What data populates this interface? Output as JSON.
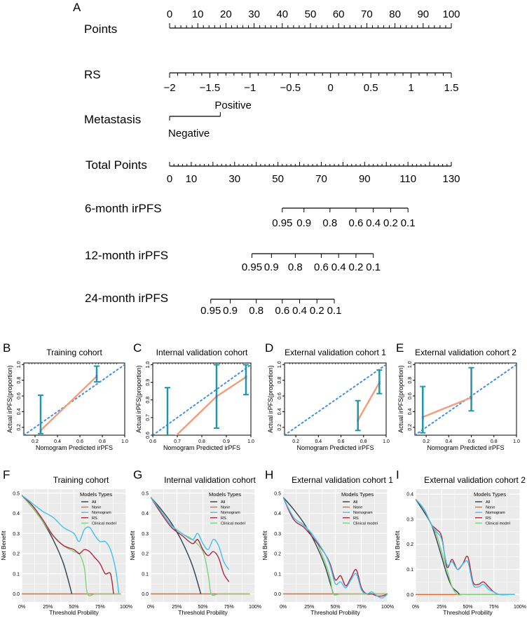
{
  "panel_letters": [
    "A",
    "B",
    "C",
    "D",
    "E",
    "F",
    "G",
    "H",
    "I"
  ],
  "colors": {
    "calib_error": "#2196a8",
    "calib_line": "#f0a07c",
    "calib_ideal": "#3d8ee8",
    "calib_point": "#4a5bd8",
    "dca_all": "#2f3d4a",
    "dca_none": "#e4692b",
    "dca_nomogram": "#3fc1e8",
    "dca_rs": "#b0243e",
    "dca_clinical": "#7fd07a",
    "grid_bg": "#ebebeb",
    "grid_line": "#ffffff"
  },
  "chart_data": [
    {
      "type": "nomogram",
      "panel": "A",
      "axes": [
        {
          "label": "Points",
          "tick_labels": [
            "0",
            "10",
            "20",
            "30",
            "40",
            "50",
            "60",
            "70",
            "80",
            "90",
            "100"
          ],
          "tick_values": [
            0,
            10,
            20,
            30,
            40,
            50,
            60,
            70,
            80,
            90,
            100
          ],
          "scale": [
            0,
            100
          ]
        },
        {
          "label": "RS",
          "tick_labels": [
            "−2",
            "−1.5",
            "−1",
            "−0.5",
            "0",
            "0.5",
            "1",
            "1.5"
          ],
          "tick_values": [
            -2,
            -1.5,
            -1,
            -0.5,
            0,
            0.5,
            1,
            1.5
          ],
          "points_map": [
            0,
            100
          ]
        },
        {
          "label": "Metastasis",
          "tick_labels": [
            "Positive",
            "Negative"
          ],
          "points": [
            18,
            0
          ]
        },
        {
          "label": "Total Points",
          "tick_labels": [
            "0",
            "10",
            "30",
            "50",
            "70",
            "90",
            "110",
            "130"
          ],
          "tick_values": [
            0,
            10,
            30,
            50,
            70,
            90,
            110,
            130
          ],
          "scale": [
            0,
            130
          ]
        },
        {
          "label": "6-month irPFS",
          "tick_labels": [
            "0.95",
            "0.9",
            "0.8",
            "0.6",
            "0.4",
            "0.2",
            "0.1"
          ],
          "total_points": [
            52,
            62,
            74,
            86,
            94,
            102,
            110
          ]
        },
        {
          "label": "12-month irPFS",
          "tick_labels": [
            "0.95",
            "0.9",
            "0.8",
            "0.6",
            "0.4",
            "0.2",
            "0.1"
          ],
          "total_points": [
            38,
            47,
            58,
            70,
            78,
            86,
            94
          ]
        },
        {
          "label": "24-month irPFS",
          "tick_labels": [
            "0.95",
            "0.9",
            "0.8",
            "0.6",
            "0.4",
            "0.2",
            "0.1"
          ],
          "total_points": [
            19,
            28,
            40,
            52,
            60,
            68,
            76
          ]
        }
      ]
    },
    {
      "type": "calibration",
      "panel": "B",
      "title": "Training cohort",
      "xlabel": "Nomogram Predicted irPFS",
      "ylabel": "Actual irPFS(proportion)",
      "xlim": [
        0.1,
        1.0
      ],
      "ylim": [
        0.1,
        1.02
      ],
      "xticks": [
        0.2,
        0.4,
        0.6,
        0.8,
        1.0
      ],
      "xtick_labels": [
        "0.2",
        "0.4",
        "0.6",
        "0.8",
        "1.0"
      ],
      "yticks": [
        0.2,
        0.4,
        0.6,
        0.8,
        1.0
      ],
      "ytick_labels": [
        "0.2",
        "0.4",
        "0.6",
        "0.8",
        "1.0"
      ],
      "points": [
        {
          "x": 0.25,
          "y": 0.16,
          "lo": 0.12,
          "hi": 0.61
        },
        {
          "x": 0.75,
          "y": 0.85,
          "lo": 0.78,
          "hi": 0.98
        }
      ]
    },
    {
      "type": "calibration",
      "panel": "C",
      "title": "Internal validation cohort",
      "xlabel": "Nomogram Predicted irPFS",
      "ylabel": "Actual irPFS(proportion)",
      "xlim": [
        0.6,
        1.0
      ],
      "ylim": [
        0.6,
        1.01
      ],
      "xticks": [
        0.6,
        0.7,
        0.8,
        0.9,
        1.0
      ],
      "xtick_labels": [
        "0.6",
        "0.7",
        "0.8",
        "0.9",
        "1.0"
      ],
      "yticks": [
        0.6,
        0.7,
        0.8,
        0.9,
        1.0
      ],
      "ytick_labels": [
        "0.6",
        "0.7",
        "0.8",
        "0.9",
        "1.0"
      ],
      "points": [
        {
          "x": 0.66,
          "y": 0.55,
          "lo": 0.55,
          "hi": 0.87
        },
        {
          "x": 0.86,
          "y": 0.82,
          "lo": 0.64,
          "hi": 1.0
        },
        {
          "x": 0.98,
          "y": 0.93,
          "lo": 0.83,
          "hi": 1.0
        }
      ]
    },
    {
      "type": "calibration",
      "panel": "D",
      "title": "External validation cohort 1",
      "xlabel": "Nomogram Predicted irPFS",
      "ylabel": "Actual irPFS(proportion)",
      "xlim": [
        0.1,
        1.0
      ],
      "ylim": [
        0.1,
        1.02
      ],
      "xticks": [
        0.2,
        0.4,
        0.6,
        0.8,
        1.0
      ],
      "xtick_labels": [
        "0.2",
        "0.4",
        "0.6",
        "0.8",
        "1.0"
      ],
      "yticks": [
        0.2,
        0.4,
        0.6,
        0.8,
        1.0
      ],
      "ytick_labels": [
        "0.2",
        "0.4",
        "0.6",
        "0.8",
        "1.0"
      ],
      "points": [
        {
          "x": 0.75,
          "y": 0.29,
          "lo": 0.16,
          "hi": 0.54
        },
        {
          "x": 0.94,
          "y": 0.77,
          "lo": 0.63,
          "hi": 0.93
        }
      ]
    },
    {
      "type": "calibration",
      "panel": "E",
      "title": "External validation cohort 2",
      "xlabel": "Nomogram Predicted irPFS",
      "ylabel": "Actual irPFS(proportion)",
      "xlim": [
        0.1,
        1.0
      ],
      "ylim": [
        0.1,
        1.02
      ],
      "xticks": [
        0.2,
        0.4,
        0.6,
        0.8,
        1.0
      ],
      "xtick_labels": [
        "0.2",
        "0.4",
        "0.6",
        "0.8",
        "1.0"
      ],
      "yticks": [
        0.2,
        0.4,
        0.6,
        0.8,
        1.0
      ],
      "ytick_labels": [
        "0.2",
        "0.4",
        "0.6",
        "0.8",
        "1.0"
      ],
      "points": [
        {
          "x": 0.17,
          "y": 0.33,
          "lo": 0.13,
          "hi": 0.72
        },
        {
          "x": 0.6,
          "y": 0.58,
          "lo": 0.41,
          "hi": 0.96
        }
      ]
    },
    {
      "type": "line",
      "panel": "F",
      "title": "Training cohort",
      "xlabel": "Threshold Probility",
      "ylabel": "Net Benefit",
      "xlim": [
        0,
        100
      ],
      "ylim": [
        -0.04,
        0.52
      ],
      "xticks": [
        0,
        25,
        50,
        75,
        100
      ],
      "xtick_labels": [
        "0%",
        "25%",
        "50%",
        "75%",
        "100%"
      ],
      "yticks": [
        0,
        0.1,
        0.2,
        0.3,
        0.4,
        0.5
      ],
      "ytick_labels": [
        "0.0",
        "0.1",
        "0.2",
        "0.3",
        "0.4",
        "0.5"
      ],
      "legend": {
        "title": "Models Types",
        "labels": [
          "All",
          "None",
          "Nomogram",
          "RS",
          "Clinical model"
        ]
      },
      "series": [
        {
          "name": "All",
          "x": [
            0,
            10,
            20,
            30,
            40,
            48
          ],
          "y": [
            0.49,
            0.43,
            0.36,
            0.27,
            0.15,
            0
          ]
        },
        {
          "name": "None",
          "x": [
            0,
            95
          ],
          "y": [
            0,
            0
          ]
        },
        {
          "name": "Nomogram",
          "x": [
            0,
            10,
            20,
            30,
            40,
            50,
            55,
            60,
            65,
            70,
            75,
            80,
            85,
            90,
            93
          ],
          "y": [
            0.49,
            0.45,
            0.41,
            0.38,
            0.33,
            0.3,
            0.26,
            0.32,
            0.33,
            0.29,
            0.26,
            0.26,
            0.22,
            0.12,
            0
          ]
        },
        {
          "name": "RS",
          "x": [
            0,
            10,
            20,
            30,
            40,
            50,
            55,
            60,
            65,
            70,
            75,
            80,
            85,
            88
          ],
          "y": [
            0.49,
            0.44,
            0.37,
            0.29,
            0.24,
            0.22,
            0.2,
            0.22,
            0.21,
            0.18,
            0.15,
            0.1,
            0.1,
            0
          ]
        },
        {
          "name": "Clinical model",
          "x": [
            0,
            10,
            20,
            30,
            40,
            50,
            55,
            60,
            63,
            70,
            75,
            80,
            85,
            90,
            95
          ],
          "y": [
            0.49,
            0.43,
            0.36,
            0.29,
            0.24,
            0.21,
            0.2,
            0.13,
            0,
            0,
            0,
            0,
            0,
            0,
            0
          ]
        }
      ]
    },
    {
      "type": "line",
      "panel": "G",
      "title": "Internal validation cohort",
      "xlabel": "Threshold Probility",
      "ylabel": "Net Benefit",
      "xlim": [
        0,
        100
      ],
      "ylim": [
        -0.04,
        0.52
      ],
      "xticks": [
        0,
        25,
        50,
        75,
        100
      ],
      "xtick_labels": [
        "0%",
        "25%",
        "50%",
        "75%",
        "100%"
      ],
      "yticks": [
        0,
        0.1,
        0.2,
        0.3,
        0.4,
        0.5
      ],
      "ytick_labels": [
        "0.0",
        "0.1",
        "0.2",
        "0.3",
        "0.4",
        "0.5"
      ],
      "legend": {
        "title": "Models Types",
        "labels": [
          "All",
          "None",
          "Nomogram",
          "RS",
          "Clinical model"
        ]
      },
      "series": [
        {
          "name": "All",
          "x": [
            0,
            10,
            20,
            30,
            40,
            48
          ],
          "y": [
            0.48,
            0.42,
            0.35,
            0.26,
            0.14,
            0
          ]
        },
        {
          "name": "None",
          "x": [
            0,
            95
          ],
          "y": [
            0,
            0
          ]
        },
        {
          "name": "Nomogram",
          "x": [
            0,
            10,
            20,
            30,
            40,
            45,
            50,
            55,
            60,
            65,
            70,
            75
          ],
          "y": [
            0.48,
            0.41,
            0.34,
            0.3,
            0.27,
            0.3,
            0.25,
            0.22,
            0.27,
            0.24,
            0.16,
            0.12
          ]
        },
        {
          "name": "RS",
          "x": [
            0,
            10,
            20,
            30,
            40,
            45,
            50,
            55,
            60,
            65,
            70,
            75
          ],
          "y": [
            0.48,
            0.4,
            0.33,
            0.29,
            0.25,
            0.27,
            0.22,
            0.19,
            0.21,
            0.18,
            0.1,
            0.06
          ]
        },
        {
          "name": "Clinical model",
          "x": [
            0,
            10,
            20,
            30,
            40,
            50,
            55,
            58,
            65,
            75,
            85,
            95
          ],
          "y": [
            0.48,
            0.41,
            0.34,
            0.3,
            0.27,
            0.21,
            0.1,
            0,
            0,
            0,
            0,
            0
          ]
        }
      ]
    },
    {
      "type": "line",
      "panel": "H",
      "title": "External validation cohort 1",
      "xlabel": "Threshold Probility",
      "ylabel": "Net Benefit",
      "xlim": [
        0,
        100
      ],
      "ylim": [
        -0.04,
        0.52
      ],
      "xticks": [
        0,
        25,
        50,
        75,
        100
      ],
      "xtick_labels": [
        "0%",
        "25%",
        "50%",
        "75%",
        "100%"
      ],
      "yticks": [
        0,
        0.1,
        0.2,
        0.3,
        0.4,
        0.5
      ],
      "ytick_labels": [
        "0.0",
        "0.1",
        "0.2",
        "0.3",
        "0.4",
        "0.5"
      ],
      "legend": {
        "title": "Models Types",
        "labels": [
          "All",
          "None",
          "Nomogram",
          "RS",
          "Clinical model"
        ]
      },
      "series": [
        {
          "name": "All",
          "x": [
            0,
            10,
            20,
            30,
            40,
            48
          ],
          "y": [
            0.48,
            0.42,
            0.35,
            0.26,
            0.14,
            0
          ]
        },
        {
          "name": "None",
          "x": [
            0,
            100
          ],
          "y": [
            0,
            0
          ]
        },
        {
          "name": "Nomogram",
          "x": [
            0,
            10,
            20,
            30,
            40,
            45,
            50,
            55,
            60,
            65,
            70,
            75,
            80,
            85,
            90,
            95,
            100
          ],
          "y": [
            0.48,
            0.38,
            0.34,
            0.28,
            0.2,
            0.14,
            0.05,
            0.06,
            0.03,
            0.07,
            0.1,
            0.02,
            0.0,
            0.01,
            -0.01,
            -0.02,
            0
          ]
        },
        {
          "name": "RS",
          "x": [
            0,
            10,
            20,
            30,
            40,
            45,
            50,
            55,
            60,
            65,
            70,
            75,
            80,
            85,
            90,
            95,
            100
          ],
          "y": [
            0.48,
            0.37,
            0.33,
            0.27,
            0.2,
            0.15,
            0.07,
            0.09,
            0.04,
            0.08,
            0.12,
            0.03,
            0.0,
            0.0,
            -0.01,
            -0.01,
            0
          ]
        },
        {
          "name": "Clinical model",
          "x": [
            0,
            10,
            20,
            30,
            40,
            45,
            48,
            55,
            65,
            75,
            85,
            95,
            100
          ],
          "y": [
            0.48,
            0.38,
            0.34,
            0.28,
            0.16,
            0.08,
            0,
            0,
            0,
            0,
            0,
            0,
            0
          ]
        }
      ]
    },
    {
      "type": "line",
      "panel": "I",
      "title": "External validation cohort 2",
      "xlabel": "Threshold Probility",
      "ylabel": "Net Benefit",
      "xlim": [
        0,
        100
      ],
      "ylim": [
        -0.03,
        0.42
      ],
      "xticks": [
        0,
        25,
        50,
        75,
        100
      ],
      "xtick_labels": [
        "0%",
        "25%",
        "50%",
        "75%",
        "100%"
      ],
      "yticks": [
        0,
        0.1,
        0.2,
        0.3,
        0.4
      ],
      "ytick_labels": [
        "0.0",
        "0.1",
        "0.2",
        "0.3",
        "0.4"
      ],
      "legend": {
        "title": "Models Types",
        "labels": [
          "All",
          "None",
          "Nomogram",
          "RS",
          "Clinical model"
        ]
      },
      "series": [
        {
          "name": "All",
          "x": [
            0,
            8,
            15,
            20,
            25,
            30,
            35,
            40,
            42
          ],
          "y": [
            0.38,
            0.33,
            0.28,
            0.22,
            0.15,
            0.08,
            0.03,
            0.01,
            0
          ]
        },
        {
          "name": "None",
          "x": [
            0,
            95
          ],
          "y": [
            0,
            0
          ]
        },
        {
          "name": "Nomogram",
          "x": [
            0,
            8,
            15,
            20,
            25,
            30,
            35,
            40,
            45,
            50,
            55,
            60,
            65,
            70,
            75,
            80,
            90,
            95
          ],
          "y": [
            0.38,
            0.34,
            0.28,
            0.25,
            0.22,
            0.12,
            0.13,
            0.1,
            0.12,
            0.13,
            0.04,
            0.03,
            0.04,
            0.02,
            0.01,
            0.0,
            0,
            0
          ]
        },
        {
          "name": "RS",
          "x": [
            0,
            8,
            15,
            20,
            25,
            30,
            35,
            40,
            45,
            50,
            55,
            60,
            65,
            70,
            75,
            80,
            90,
            95
          ],
          "y": [
            0.38,
            0.34,
            0.28,
            0.26,
            0.23,
            0.11,
            0.14,
            0.1,
            0.12,
            0.15,
            0.05,
            0.04,
            0.05,
            0.03,
            0.01,
            0.0,
            0,
            0
          ]
        },
        {
          "name": "Clinical model",
          "x": [
            0,
            8,
            15,
            20,
            25,
            30,
            35,
            40,
            45,
            50,
            55,
            95
          ],
          "y": [
            0.38,
            0.34,
            0.28,
            0.24,
            0.17,
            0.1,
            0.03,
            0.0,
            0,
            0,
            0,
            0
          ]
        }
      ]
    }
  ]
}
